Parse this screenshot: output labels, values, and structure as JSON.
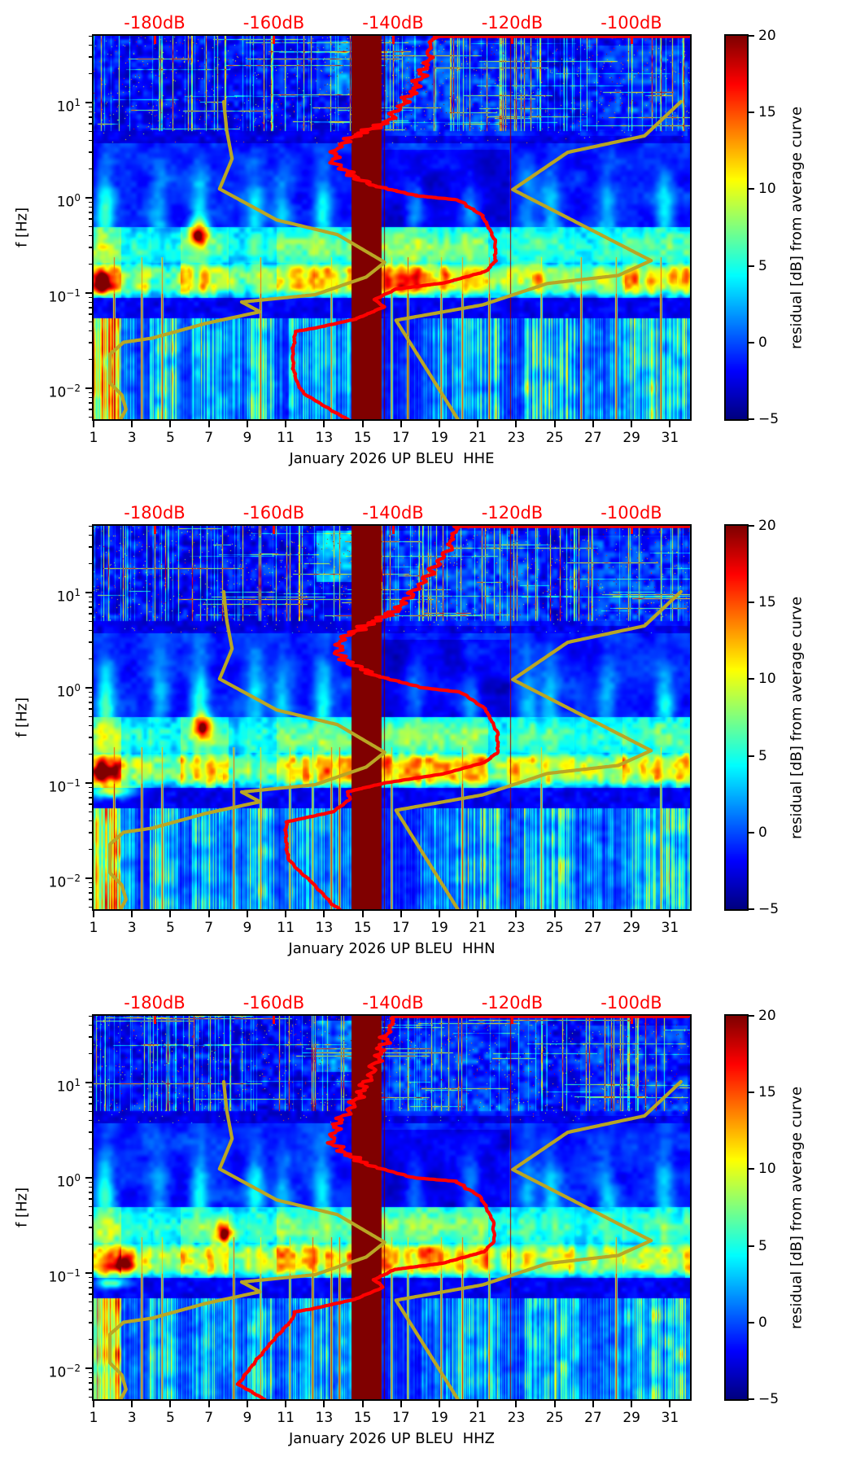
{
  "figure": {
    "background": "#ffffff"
  },
  "chart_data": {
    "type": "heatmap",
    "subtype": "spectrogram-psd-residual",
    "colormap": "jet",
    "value_range_db": [
      -5,
      20
    ],
    "x_axis": {
      "range_days": [
        1,
        32
      ],
      "ticks": [
        1,
        3,
        5,
        7,
        9,
        11,
        13,
        15,
        17,
        19,
        21,
        23,
        25,
        27,
        29,
        31
      ]
    },
    "y_axis": {
      "label": "f [Hz]",
      "scale": "log",
      "range_hz": [
        0.0047,
        50.2
      ],
      "major_tick_exponents": [
        "1",
        "0",
        "−1",
        "−2"
      ]
    },
    "db_axis": {
      "color": "#ff0000",
      "range_db": [
        -190.2,
        -90.2
      ],
      "tick_values": [
        -180,
        -160,
        -140,
        -120,
        -100
      ],
      "labels": [
        "-180dB",
        "-160dB",
        "-140dB",
        "-120dB",
        "-100dB"
      ]
    },
    "colorbar": {
      "label": "residual [dB] from average curve",
      "tick_values": [
        20,
        15,
        10,
        5,
        0,
        -5
      ],
      "tick_labels": [
        "20",
        "15",
        "10",
        "5",
        "0",
        "−5"
      ]
    },
    "curve_color_red": "#ff0000",
    "noise_models": {
      "color": "#b9a624",
      "nlnm_db_hz": [
        [
          -168.4,
          10.2
        ],
        [
          -167.9,
          5.1
        ],
        [
          -167,
          2.57
        ],
        [
          -169.1,
          1.24
        ],
        [
          -159.5,
          0.585
        ],
        [
          -149.3,
          0.41
        ],
        [
          -141.4,
          0.21
        ],
        [
          -144.5,
          0.147
        ],
        [
          -153.1,
          0.096
        ],
        [
          -165.4,
          0.0805
        ],
        [
          -162.3,
          0.0635
        ],
        [
          -171.4,
          0.048
        ],
        [
          -180.4,
          0.0336
        ],
        [
          -185.2,
          0.0304
        ],
        [
          -187.5,
          0.0227
        ],
        [
          -187.5,
          0.0114
        ],
        [
          -185.5,
          0.0085
        ],
        [
          -184.8,
          0.006
        ],
        [
          -185.7,
          0.0047
        ]
      ],
      "nhnm_db_hz": [
        [
          -91.7,
          10.2
        ],
        [
          -97.8,
          4.47
        ],
        [
          -110.7,
          3.0
        ],
        [
          -119.9,
          1.22
        ],
        [
          -96.7,
          0.219
        ],
        [
          -102.2,
          0.153
        ],
        [
          -114.1,
          0.126
        ],
        [
          -125,
          0.075
        ],
        [
          -139.5,
          0.0518
        ],
        [
          -129.1,
          0.0047
        ]
      ]
    },
    "subplots": [
      {
        "id": "HHE",
        "title": "January 2026 UP BLEU  HHE",
        "seed": 7,
        "red_top_db": -133,
        "micro_core_day": 1.45,
        "blob": {
          "day": 6.45,
          "logf": -0.37,
          "amp": 0.5,
          "core": 0.33
        },
        "hf_patches": [
          [
            12.6,
            14.4,
            12,
            45,
            0.1
          ],
          [
            16.2,
            24.2,
            4.5,
            45,
            0.055
          ],
          [
            26.3,
            31.9,
            4.5,
            40,
            0.05
          ]
        ],
        "extra_blobs": [],
        "red_curve_db_hz": [
          [
            -133.6,
            45
          ],
          [
            -134.3,
            26
          ],
          [
            -136.6,
            13
          ],
          [
            -141.1,
            6.2
          ],
          [
            -146,
            4.6
          ],
          [
            -149.3,
            3.45
          ],
          [
            -149.7,
            2.33
          ],
          [
            -147.5,
            1.8
          ],
          [
            -143.8,
            1.37
          ],
          [
            -136,
            1.05
          ],
          [
            -129.1,
            0.95
          ],
          [
            -125,
            0.65
          ],
          [
            -122.9,
            0.36
          ],
          [
            -122.8,
            0.218
          ],
          [
            -124.4,
            0.169
          ],
          [
            -131.3,
            0.128
          ],
          [
            -139.5,
            0.11
          ],
          [
            -143.1,
            0.0855
          ],
          [
            -141.5,
            0.0715
          ],
          [
            -146.3,
            0.0532
          ],
          [
            -153.1,
            0.0428
          ],
          [
            -156.4,
            0.0395
          ],
          [
            -156.8,
            0.0252
          ],
          [
            -156.7,
            0.0154
          ],
          [
            -156.1,
            0.0114
          ],
          [
            -155,
            0.00885
          ],
          [
            -150.4,
            0.0059
          ],
          [
            -147.6,
            0.0047
          ]
        ]
      },
      {
        "id": "HHN",
        "title": "January 2026 UP BLEU  HHN",
        "seed": 13,
        "red_top_db": -129.5,
        "micro_core_day": 1.5,
        "blob": {
          "day": 6.7,
          "logf": -0.39,
          "amp": 0.48,
          "core": 0.3
        },
        "hf_patches": [
          [
            12.6,
            16.0,
            13,
            45,
            0.2
          ],
          [
            16.2,
            24.2,
            4.5,
            45,
            0.06
          ],
          [
            26.3,
            31.9,
            4.5,
            40,
            0.05
          ]
        ],
        "extra_blobs": [
          {
            "day": 1.9,
            "dayw": 1.0,
            "logf": -1.08,
            "logfw": 0.07,
            "amp": 0.5
          }
        ],
        "red_curve_db_hz": [
          [
            -129.5,
            45
          ],
          [
            -131,
            27
          ],
          [
            -134.5,
            14
          ],
          [
            -139.5,
            6.5
          ],
          [
            -145.5,
            4.2
          ],
          [
            -148.8,
            3.2
          ],
          [
            -149.6,
            2.3
          ],
          [
            -147,
            1.8
          ],
          [
            -143,
            1.35
          ],
          [
            -135,
            1.0
          ],
          [
            -128.6,
            0.9
          ],
          [
            -124.5,
            0.6
          ],
          [
            -122.5,
            0.34
          ],
          [
            -122.4,
            0.21
          ],
          [
            -124.6,
            0.165
          ],
          [
            -131.5,
            0.125
          ],
          [
            -141.4,
            0.1
          ],
          [
            -147.6,
            0.081
          ],
          [
            -147.2,
            0.068
          ],
          [
            -150,
            0.05
          ],
          [
            -157.9,
            0.039
          ],
          [
            -158,
            0.0265
          ],
          [
            -157.6,
            0.016
          ],
          [
            -155.4,
            0.0113
          ],
          [
            -153.8,
            0.0093
          ],
          [
            -150,
            0.0052
          ],
          [
            -148.9,
            0.0047
          ]
        ]
      },
      {
        "id": "HHZ",
        "title": "January 2026 UP BLEU  HHZ",
        "seed": 29,
        "red_top_db": -140,
        "micro_core_day": 2.6,
        "blob": {
          "day": 7.8,
          "logf": -0.57,
          "amp": 0.5,
          "core": 0.3
        },
        "hf_patches": [
          [
            12.6,
            16.0,
            13,
            45,
            0.15
          ],
          [
            16.2,
            24.2,
            4.5,
            45,
            0.05
          ],
          [
            26.3,
            31.9,
            4.5,
            40,
            0.05
          ]
        ],
        "extra_blobs": [
          {
            "day": 1.9,
            "dayw": 0.8,
            "logf": -1.1,
            "logfw": 0.06,
            "amp": 0.35
          }
        ],
        "red_curve_db_hz": [
          [
            -140,
            45
          ],
          [
            -141.5,
            26
          ],
          [
            -143.5,
            13
          ],
          [
            -146.5,
            6.0
          ],
          [
            -149.8,
            3.4
          ],
          [
            -150.3,
            2.4
          ],
          [
            -148,
            1.8
          ],
          [
            -144,
            1.35
          ],
          [
            -136.5,
            1.0
          ],
          [
            -129.5,
            0.92
          ],
          [
            -125.3,
            0.63
          ],
          [
            -123.2,
            0.35
          ],
          [
            -123,
            0.215
          ],
          [
            -124.8,
            0.167
          ],
          [
            -131.6,
            0.127
          ],
          [
            -139.7,
            0.109
          ],
          [
            -143.2,
            0.085
          ],
          [
            -141.6,
            0.071
          ],
          [
            -146.4,
            0.053
          ],
          [
            -153.2,
            0.0425
          ],
          [
            -156.5,
            0.039
          ],
          [
            -157,
            0.032
          ],
          [
            -160,
            0.02
          ],
          [
            -163,
            0.012
          ],
          [
            -166,
            0.0068
          ],
          [
            -161.5,
            0.0047
          ]
        ]
      }
    ],
    "spectrogram": {
      "gap_days": [
        14.42,
        15.97
      ],
      "gap_color": "#800000",
      "vline_days": [
        {
          "day": 16.12,
          "t": 1.0
        },
        {
          "day": 22.68,
          "t": 0.97
        }
      ],
      "spike_days": [
        2.05,
        3.5,
        4.55,
        8.3,
        9.7,
        11.2,
        12.4,
        13.35,
        13.8,
        16.5,
        17.35,
        19.1,
        20.2,
        21.6,
        24.3,
        26.35,
        28.2,
        30.5
      ],
      "lowfreq_profile": [
        [
          1,
          2.4,
          0.95
        ],
        [
          2.4,
          3.2,
          0.45
        ],
        [
          3.2,
          3.9,
          0.25
        ],
        [
          3.9,
          5.4,
          0.7
        ],
        [
          5.4,
          6.1,
          0.3
        ],
        [
          6.1,
          7.6,
          0.6
        ],
        [
          7.6,
          8.6,
          0.5
        ],
        [
          8.6,
          9.0,
          0.35
        ],
        [
          9.0,
          10.4,
          0.7
        ],
        [
          10.4,
          11.1,
          0.3
        ],
        [
          11.1,
          13.2,
          0.55
        ],
        [
          13.2,
          14.42,
          0.5
        ],
        [
          14.42,
          15.97,
          0
        ],
        [
          15.97,
          18.0,
          0.18
        ],
        [
          18.0,
          19.6,
          0.45
        ],
        [
          19.6,
          22.1,
          0.6
        ],
        [
          22.1,
          23.4,
          0.35
        ],
        [
          23.4,
          26.1,
          0.75
        ],
        [
          26.1,
          28.6,
          0.4
        ],
        [
          28.6,
          32.01,
          0.75
        ]
      ],
      "microseism_profile": [
        [
          1,
          2.4,
          0.95
        ],
        [
          2.4,
          4.0,
          0.6
        ],
        [
          4.0,
          5.5,
          0.5
        ],
        [
          5.5,
          8.0,
          0.75
        ],
        [
          8.0,
          9.0,
          0.5
        ],
        [
          9.0,
          10.5,
          0.55
        ],
        [
          10.5,
          12.5,
          0.8
        ],
        [
          12.5,
          14.42,
          0.75
        ],
        [
          14.42,
          15.97,
          0
        ],
        [
          15.97,
          18.5,
          0.9
        ],
        [
          18.5,
          21.5,
          0.85
        ],
        [
          21.5,
          22.5,
          0.55
        ],
        [
          22.5,
          26.0,
          0.65
        ],
        [
          26.0,
          28.5,
          0.55
        ],
        [
          28.5,
          32.01,
          0.7
        ]
      ],
      "plume_days": [
        [
          1.6,
          0.55
        ],
        [
          4.4,
          0.3
        ],
        [
          6.5,
          0.5
        ],
        [
          9.4,
          0.4
        ],
        [
          10.8,
          0.3
        ],
        [
          12.9,
          0.45
        ],
        [
          17.7,
          0.25
        ],
        [
          20.6,
          0.3
        ],
        [
          23.6,
          0.25
        ],
        [
          24.8,
          0.35
        ],
        [
          27.7,
          0.3
        ],
        [
          30.7,
          0.4
        ]
      ],
      "dark_patch": {
        "days": [
          16.0,
          22.6
        ],
        "f": [
          0.5,
          3.2
        ],
        "delta": -0.055
      }
    }
  }
}
